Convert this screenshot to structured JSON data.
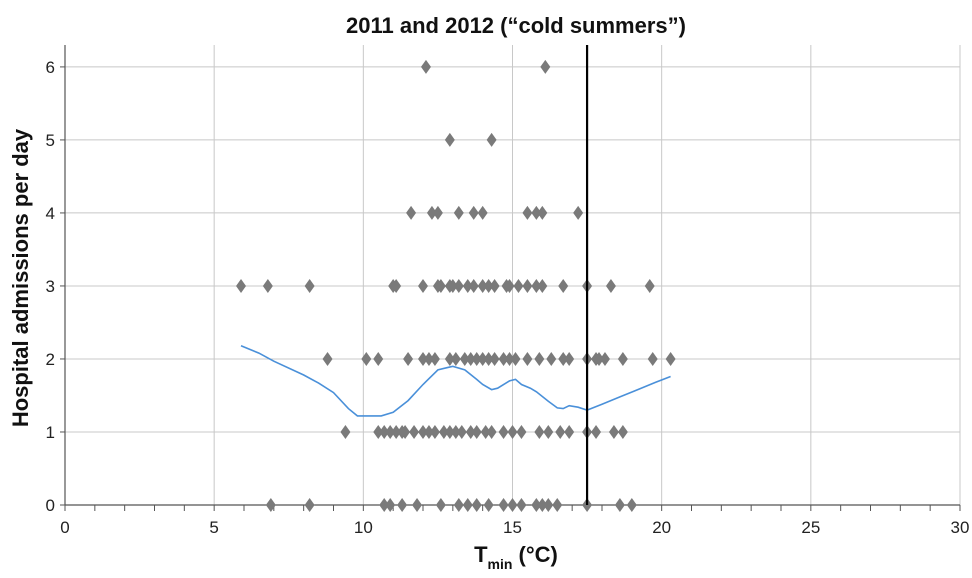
{
  "chart_data": {
    "type": "scatter",
    "title": "2011 and 2012 (“cold summers”)",
    "ylabel": "Hospital admissions per day",
    "xlabel_main": "T",
    "xlabel_sub": "min",
    "xlabel_unit": " (°C)",
    "xlim": [
      0,
      30
    ],
    "ylim": [
      0,
      6.3
    ],
    "xticks": [
      0,
      5,
      10,
      15,
      20,
      25,
      30
    ],
    "yticks": [
      0,
      1,
      2,
      3,
      4,
      5,
      6
    ],
    "xticks_minor_step": 1,
    "grid": true,
    "vertical_line_x": 17.5,
    "colors": {
      "points": "#7a7a7a",
      "curve": "#4a90d9",
      "vline": "#000000",
      "grid": "#c8c8c8",
      "axis": "#555555"
    },
    "series": [
      {
        "type": "scatter",
        "points": [
          [
            12.1,
            6
          ],
          [
            16.1,
            6
          ],
          [
            12.9,
            5
          ],
          [
            14.3,
            5
          ],
          [
            11.6,
            4
          ],
          [
            12.3,
            4
          ],
          [
            12.5,
            4
          ],
          [
            13.2,
            4
          ],
          [
            13.7,
            4
          ],
          [
            14.0,
            4
          ],
          [
            15.5,
            4
          ],
          [
            15.8,
            4
          ],
          [
            16.0,
            4
          ],
          [
            17.2,
            4
          ],
          [
            5.9,
            3
          ],
          [
            6.8,
            3
          ],
          [
            8.2,
            3
          ],
          [
            11.0,
            3
          ],
          [
            11.1,
            3
          ],
          [
            12.0,
            3
          ],
          [
            12.5,
            3
          ],
          [
            12.6,
            3
          ],
          [
            12.9,
            3
          ],
          [
            13.0,
            3
          ],
          [
            13.2,
            3
          ],
          [
            13.5,
            3
          ],
          [
            13.7,
            3
          ],
          [
            14.0,
            3
          ],
          [
            14.2,
            3
          ],
          [
            14.4,
            3
          ],
          [
            14.8,
            3
          ],
          [
            14.9,
            3
          ],
          [
            15.2,
            3
          ],
          [
            15.5,
            3
          ],
          [
            15.8,
            3
          ],
          [
            16.0,
            3
          ],
          [
            16.7,
            3
          ],
          [
            17.5,
            3
          ],
          [
            18.3,
            3
          ],
          [
            19.6,
            3
          ],
          [
            8.8,
            2
          ],
          [
            10.1,
            2
          ],
          [
            10.5,
            2
          ],
          [
            11.5,
            2
          ],
          [
            12.0,
            2
          ],
          [
            12.2,
            2
          ],
          [
            12.4,
            2
          ],
          [
            12.9,
            2
          ],
          [
            13.1,
            2
          ],
          [
            13.4,
            2
          ],
          [
            13.6,
            2
          ],
          [
            13.8,
            2
          ],
          [
            14.0,
            2
          ],
          [
            14.2,
            2
          ],
          [
            14.4,
            2
          ],
          [
            14.7,
            2
          ],
          [
            14.9,
            2
          ],
          [
            15.1,
            2
          ],
          [
            15.5,
            2
          ],
          [
            15.9,
            2
          ],
          [
            16.3,
            2
          ],
          [
            16.7,
            2
          ],
          [
            16.9,
            2
          ],
          [
            17.5,
            2
          ],
          [
            17.8,
            2
          ],
          [
            17.9,
            2
          ],
          [
            18.1,
            2
          ],
          [
            18.7,
            2
          ],
          [
            19.7,
            2
          ],
          [
            20.3,
            2
          ],
          [
            9.4,
            1
          ],
          [
            10.5,
            1
          ],
          [
            10.7,
            1
          ],
          [
            10.9,
            1
          ],
          [
            11.1,
            1
          ],
          [
            11.3,
            1
          ],
          [
            11.4,
            1
          ],
          [
            11.7,
            1
          ],
          [
            12.0,
            1
          ],
          [
            12.2,
            1
          ],
          [
            12.4,
            1
          ],
          [
            12.7,
            1
          ],
          [
            12.9,
            1
          ],
          [
            13.1,
            1
          ],
          [
            13.3,
            1
          ],
          [
            13.6,
            1
          ],
          [
            13.8,
            1
          ],
          [
            14.1,
            1
          ],
          [
            14.3,
            1
          ],
          [
            14.7,
            1
          ],
          [
            15.0,
            1
          ],
          [
            15.3,
            1
          ],
          [
            15.9,
            1
          ],
          [
            16.2,
            1
          ],
          [
            16.6,
            1
          ],
          [
            16.9,
            1
          ],
          [
            17.5,
            1
          ],
          [
            17.8,
            1
          ],
          [
            18.4,
            1
          ],
          [
            18.7,
            1
          ],
          [
            6.9,
            0
          ],
          [
            8.2,
            0
          ],
          [
            10.7,
            0
          ],
          [
            10.9,
            0
          ],
          [
            11.3,
            0
          ],
          [
            11.8,
            0
          ],
          [
            12.6,
            0
          ],
          [
            13.2,
            0
          ],
          [
            13.5,
            0
          ],
          [
            13.8,
            0
          ],
          [
            14.2,
            0
          ],
          [
            14.7,
            0
          ],
          [
            15.0,
            0
          ],
          [
            15.3,
            0
          ],
          [
            15.8,
            0
          ],
          [
            16.0,
            0
          ],
          [
            16.2,
            0
          ],
          [
            16.5,
            0
          ],
          [
            17.5,
            0
          ],
          [
            18.6,
            0
          ],
          [
            19.0,
            0
          ]
        ]
      },
      {
        "type": "line",
        "points": [
          [
            5.9,
            2.18
          ],
          [
            6.5,
            2.08
          ],
          [
            7.0,
            1.97
          ],
          [
            8.0,
            1.78
          ],
          [
            8.5,
            1.67
          ],
          [
            9.0,
            1.54
          ],
          [
            9.5,
            1.32
          ],
          [
            9.8,
            1.22
          ],
          [
            10.2,
            1.22
          ],
          [
            10.6,
            1.22
          ],
          [
            11.0,
            1.27
          ],
          [
            11.5,
            1.43
          ],
          [
            12.0,
            1.65
          ],
          [
            12.5,
            1.85
          ],
          [
            12.8,
            1.88
          ],
          [
            13.0,
            1.9
          ],
          [
            13.4,
            1.85
          ],
          [
            13.8,
            1.72
          ],
          [
            14.0,
            1.65
          ],
          [
            14.3,
            1.58
          ],
          [
            14.5,
            1.6
          ],
          [
            14.9,
            1.7
          ],
          [
            15.1,
            1.72
          ],
          [
            15.3,
            1.65
          ],
          [
            15.6,
            1.6
          ],
          [
            15.8,
            1.55
          ],
          [
            16.2,
            1.42
          ],
          [
            16.5,
            1.33
          ],
          [
            16.7,
            1.32
          ],
          [
            16.9,
            1.36
          ],
          [
            17.2,
            1.34
          ],
          [
            17.5,
            1.3
          ],
          [
            18.0,
            1.38
          ],
          [
            18.6,
            1.48
          ],
          [
            19.2,
            1.58
          ],
          [
            19.8,
            1.68
          ],
          [
            20.3,
            1.76
          ]
        ]
      }
    ]
  }
}
